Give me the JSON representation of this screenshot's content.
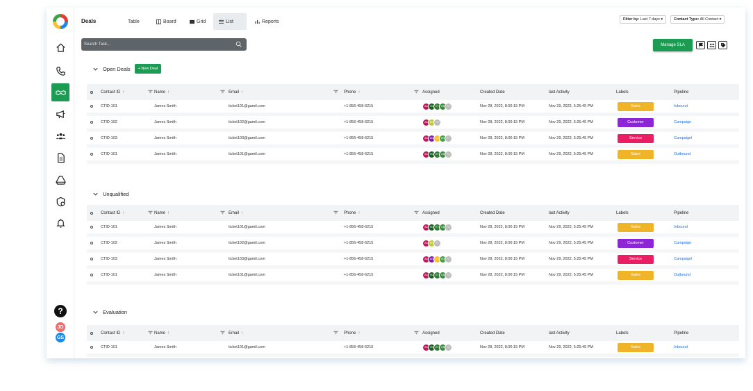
{
  "header": {
    "title": "Deals",
    "tabs": [
      {
        "label": "Table",
        "icon": "none"
      },
      {
        "label": "Board",
        "icon": "board-icon"
      },
      {
        "label": "Grid",
        "icon": "grid-icon"
      },
      {
        "label": "List",
        "icon": "list-icon",
        "active": true
      },
      {
        "label": "Reports",
        "icon": "chart-icon"
      }
    ],
    "filter_by": {
      "label": "Filter by:",
      "value": "Last 7 days"
    },
    "contact_type": {
      "label": "Contact Type:",
      "value": "All Contact"
    }
  },
  "search": {
    "placeholder": "Search Task..."
  },
  "toolbar": {
    "manage_sla": "Manage SLA"
  },
  "sidebar": {
    "icons": [
      "home-icon",
      "phone-icon",
      "deals-icon",
      "megaphone-icon",
      "users-icon",
      "document-icon",
      "drive-icon",
      "settings-icon",
      "bell-icon"
    ],
    "help": "?",
    "avatars": [
      {
        "initials": "JD",
        "color": "#ef6c6c"
      },
      {
        "initials": "GS",
        "color": "#1e88e5"
      }
    ]
  },
  "columns": [
    "Contact ID",
    "Name",
    "Email",
    "Phone",
    "Assigned",
    "Created Date",
    "last Activity",
    "Labels",
    "Pipeline"
  ],
  "sections": [
    {
      "title": "Open Deals",
      "new_button": "+ New Deal",
      "rows": [
        {
          "id": "CTID-101",
          "name": "James Smith",
          "email": "ticket101@gamil.com",
          "phone": "+1-856-458-6215",
          "avatars": [
            "AA",
            "HG",
            "ET",
            "GE",
            "+4"
          ],
          "created": "Nov 28, 2022, 8:00:15 PM",
          "activity": "Nov 29, 2022, 5:25:45 PM",
          "label": "Sales",
          "label_color": "#f0b429",
          "pipeline": "Inbound"
        },
        {
          "id": "CTID-102",
          "name": "James Smith",
          "email": "ticket102@gamil.com",
          "phone": "+1-856-458-6215",
          "avatars": [
            "AA",
            "RH",
            "+1"
          ],
          "created": "Nov 28, 2022, 8:00:15 PM",
          "activity": "Nov 29, 2022, 5:25:45 PM",
          "label": "Customer",
          "label_color": "#8e24d8",
          "pipeline": "Campaign"
        },
        {
          "id": "CTID-103",
          "name": "James Smith",
          "email": "ticket103@gamil.com",
          "phone": "+1-856-458-6215",
          "avatars": [
            "AA",
            "BG",
            "LH",
            "ED",
            "+7"
          ],
          "created": "Nov 28, 2022, 8:00:15 PM",
          "activity": "Nov 29, 2022, 5:25:45 PM",
          "label": "Service",
          "label_color": "#e91e63",
          "pipeline": "Campaignl"
        },
        {
          "id": "CTID-101",
          "name": "James Smith",
          "email": "ticket101@gamil.com",
          "phone": "+1-856-458-6215",
          "avatars": [
            "AA",
            "HG",
            "ET",
            "GE",
            "+4"
          ],
          "created": "Nov 28, 2022, 8:00:15 PM",
          "activity": "Nov 29, 2022, 5:25:45 PM",
          "label": "Sales",
          "label_color": "#f0b429",
          "pipeline": "Outbound"
        }
      ]
    },
    {
      "title": "Unqualified",
      "rows": [
        {
          "id": "CTID-101",
          "name": "James Smith",
          "email": "ticket101@gamil.com",
          "phone": "+1-856-458-6215",
          "avatars": [
            "AA",
            "HG",
            "ET",
            "GE",
            "+4"
          ],
          "created": "Nov 28, 2022, 8:00:15 PM",
          "activity": "Nov 29, 2022, 5:25:45 PM",
          "label": "Sales",
          "label_color": "#f0b429",
          "pipeline": "Inbound"
        },
        {
          "id": "CTID-102",
          "name": "James Smith",
          "email": "ticket102@gamil.com",
          "phone": "+1-856-458-6215",
          "avatars": [
            "AA",
            "RH",
            "+1"
          ],
          "created": "Nov 28, 2022, 8:00:15 PM",
          "activity": "Nov 29, 2022, 5:25:45 PM",
          "label": "Customer",
          "label_color": "#8e24d8",
          "pipeline": "Campaign"
        },
        {
          "id": "CTID-103",
          "name": "James Smith",
          "email": "ticket103@gamil.com",
          "phone": "+1-856-458-6215",
          "avatars": [
            "AA",
            "BG",
            "LH",
            "ED",
            "+7"
          ],
          "created": "Nov 28, 2022, 8:00:15 PM",
          "activity": "Nov 29, 2022, 5:25:45 PM",
          "label": "Service",
          "label_color": "#e91e63",
          "pipeline": "Campaignl"
        },
        {
          "id": "CTID-101",
          "name": "James Smith",
          "email": "ticket101@gamil.com",
          "phone": "+1-856-458-6215",
          "avatars": [
            "AA",
            "HG",
            "ET",
            "GE",
            "+4"
          ],
          "created": "Nov 28, 2022, 8:00:15 PM",
          "activity": "Nov 29, 2022, 5:25:45 PM",
          "label": "Sales",
          "label_color": "#f0b429",
          "pipeline": "Outbound"
        }
      ]
    },
    {
      "title": "Evaluation",
      "rows": [
        {
          "id": "CTID-101",
          "name": "James Smith",
          "email": "ticket101@gamil.com",
          "phone": "+1-856-458-6215",
          "avatars": [
            "AA",
            "HG",
            "ET",
            "GE",
            "+4"
          ],
          "created": "Nov 28, 2022, 8:00:15 PM",
          "activity": "Nov 29, 2022, 5:25:45 PM",
          "label": "Sales",
          "label_color": "#f0b429",
          "pipeline": "Inbound"
        }
      ]
    }
  ],
  "avatar_colors": {
    "AA": "#c2185b",
    "HG": "#1b5e20",
    "ET": "#2e7d32",
    "GE": "#388e3c",
    "RH": "#c0ca33",
    "BG": "#7b1fa2",
    "LH": "#fbc02d",
    "ED": "#43a047",
    "+1": "#bdbdbd",
    "+4": "#bdbdbd",
    "+7": "#bdbdbd"
  }
}
